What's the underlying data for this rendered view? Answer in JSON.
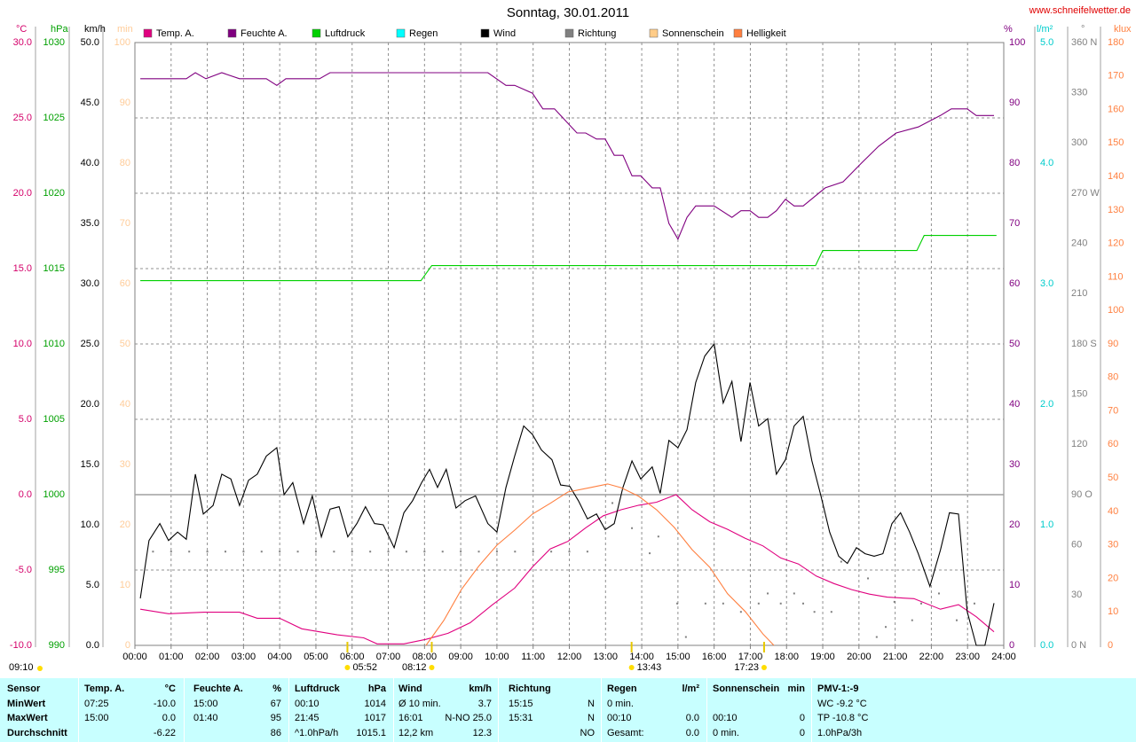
{
  "chart_data": {
    "type": "line",
    "title": "Sonntag, 30.01.2011",
    "source": "www.schneifelwetter.de",
    "corner_note": "09:10",
    "grid": true,
    "xlim": [
      0,
      24
    ],
    "xticks": [
      {
        "value": 0,
        "label": "00:00"
      },
      {
        "value": 1,
        "label": "01:00"
      },
      {
        "value": 2,
        "label": "02:00"
      },
      {
        "value": 3,
        "label": "03:00"
      },
      {
        "value": 4,
        "label": "04:00"
      },
      {
        "value": 5,
        "label": "05:00"
      },
      {
        "value": 6,
        "label": "06:00"
      },
      {
        "value": 7,
        "label": "07:00"
      },
      {
        "value": 8,
        "label": "08:00"
      },
      {
        "value": 9,
        "label": "09:00"
      },
      {
        "value": 10,
        "label": "10:00"
      },
      {
        "value": 11,
        "label": "11:00"
      },
      {
        "value": 12,
        "label": "12:00"
      },
      {
        "value": 13,
        "label": "13:00"
      },
      {
        "value": 14,
        "label": "14:00"
      },
      {
        "value": 15,
        "label": "15:00"
      },
      {
        "value": 16,
        "label": "16:00"
      },
      {
        "value": 17,
        "label": "17:00"
      },
      {
        "value": 18,
        "label": "18:00"
      },
      {
        "value": 19,
        "label": "19:00"
      },
      {
        "value": 20,
        "label": "20:00"
      },
      {
        "value": 21,
        "label": "21:00"
      },
      {
        "value": 22,
        "label": "22:00"
      },
      {
        "value": 23,
        "label": "23:00"
      },
      {
        "value": 24,
        "label": "24:00"
      }
    ],
    "axes": [
      {
        "label": "°C",
        "side": "left",
        "color": "#d4006a",
        "ylim": [
          -10,
          30
        ],
        "yticks": [
          {
            "value": -10,
            "label": "-10.0"
          },
          {
            "value": -5,
            "label": "-5.0"
          },
          {
            "value": 0,
            "label": "0.0"
          },
          {
            "value": 5,
            "label": "5.0"
          },
          {
            "value": 10,
            "label": "10.0"
          },
          {
            "value": 15,
            "label": "15.0"
          },
          {
            "value": 20,
            "label": "20.0"
          },
          {
            "value": 25,
            "label": "25.0"
          },
          {
            "value": 30,
            "label": "30.0"
          }
        ]
      },
      {
        "label": "hPa",
        "side": "left",
        "color": "#00a000",
        "ylim": [
          990,
          1030
        ],
        "yticks": [
          990,
          995,
          1000,
          1005,
          1010,
          1015,
          1020,
          1025,
          1030
        ]
      },
      {
        "label": "km/h",
        "side": "left",
        "color": "#000000",
        "ylim": [
          0,
          50
        ],
        "yticks": [
          {
            "value": 0,
            "label": "0.0"
          },
          {
            "value": 5,
            "label": "5.0"
          },
          {
            "value": 10,
            "label": "10.0"
          },
          {
            "value": 15,
            "label": "15.0"
          },
          {
            "value": 20,
            "label": "20.0"
          },
          {
            "value": 25,
            "label": "25.0"
          },
          {
            "value": 30,
            "label": "30.0"
          },
          {
            "value": 35,
            "label": "35.0"
          },
          {
            "value": 40,
            "label": "40.0"
          },
          {
            "value": 45,
            "label": "45.0"
          },
          {
            "value": 50,
            "label": "50.0"
          }
        ]
      },
      {
        "label": "min",
        "side": "left",
        "color": "#ffcc99",
        "ylim": [
          0,
          100
        ],
        "yticks": [
          0,
          10,
          20,
          30,
          40,
          50,
          60,
          70,
          80,
          90,
          100
        ]
      },
      {
        "label": "%",
        "side": "right",
        "color": "#800080",
        "ylim": [
          0,
          100
        ],
        "yticks": [
          0,
          10,
          20,
          30,
          40,
          50,
          60,
          70,
          80,
          90,
          100
        ]
      },
      {
        "label": "l/m²",
        "side": "right",
        "color": "#00cccc",
        "ylim": [
          0,
          5
        ],
        "yticks": [
          {
            "value": 0,
            "label": "0.0"
          },
          {
            "value": 1,
            "label": "1.0"
          },
          {
            "value": 2,
            "label": "2.0"
          },
          {
            "value": 3,
            "label": "3.0"
          },
          {
            "value": 4,
            "label": "4.0"
          },
          {
            "value": 5,
            "label": "5.0"
          }
        ]
      },
      {
        "label": "°",
        "side": "right",
        "color": "#808080",
        "ylim": [
          0,
          360
        ],
        "yticks": [
          {
            "value": 0,
            "label": "0 N"
          },
          30,
          60,
          {
            "value": 90,
            "label": "90 O"
          },
          120,
          150,
          {
            "value": 180,
            "label": "180 S"
          },
          210,
          240,
          {
            "value": 270,
            "label": "270 W"
          },
          300,
          330,
          {
            "value": 360,
            "label": "360 N"
          }
        ]
      },
      {
        "label": "klux",
        "side": "right",
        "color": "#ff8040",
        "ylim": [
          0,
          180
        ],
        "yticks": [
          0,
          10,
          20,
          30,
          40,
          50,
          60,
          70,
          80,
          90,
          100,
          110,
          120,
          130,
          140,
          150,
          160,
          170,
          180
        ]
      }
    ],
    "series": [
      {
        "name": "Temp. A.",
        "color": "#e0007f",
        "axis": 0,
        "style": "line",
        "x": [
          0.15,
          0.93,
          1.91,
          2.89,
          3.38,
          4.0,
          4.61,
          5.59,
          6.32,
          6.69,
          7.43,
          8.04,
          8.65,
          9.26,
          9.88,
          10.49,
          10.98,
          11.47,
          11.96,
          12.45,
          12.94,
          13.43,
          13.92,
          14.41,
          14.95,
          15.39,
          15.88,
          16.37,
          16.86,
          17.35,
          17.84,
          18.33,
          18.82,
          19.31,
          19.8,
          20.29,
          20.78,
          21.52,
          22.25,
          22.75,
          23.24,
          23.73
        ],
        "values": [
          -7.6,
          -7.9,
          -7.8,
          -7.8,
          -8.2,
          -8.2,
          -8.9,
          -9.3,
          -9.5,
          -9.9,
          -9.9,
          -9.6,
          -9.2,
          -8.5,
          -7.3,
          -6.2,
          -4.8,
          -3.6,
          -3.1,
          -2.2,
          -1.4,
          -1.0,
          -0.7,
          -0.5,
          0.0,
          -1.0,
          -1.8,
          -2.3,
          -2.9,
          -3.4,
          -4.2,
          -4.6,
          -5.4,
          -5.9,
          -6.3,
          -6.6,
          -6.8,
          -6.9,
          -7.6,
          -7.3,
          -8.1,
          -9.1
        ]
      },
      {
        "name": "Feuchte A.",
        "color": "#800080",
        "axis": 4,
        "style": "line",
        "x": [
          0.15,
          1.42,
          1.67,
          1.96,
          2.4,
          2.89,
          3.63,
          3.92,
          4.17,
          5.1,
          5.39,
          9.75,
          10.25,
          10.49,
          10.98,
          11.27,
          11.59,
          12.21,
          12.45,
          12.75,
          12.99,
          13.24,
          13.48,
          13.73,
          13.97,
          14.29,
          14.51,
          14.75,
          15.0,
          15.25,
          15.49,
          16.0,
          16.49,
          16.74,
          16.99,
          17.23,
          17.48,
          17.72,
          17.97,
          18.21,
          18.46,
          19.07,
          19.56,
          20.05,
          20.54,
          21.03,
          21.64,
          22.25,
          22.55,
          22.99,
          23.24,
          23.73
        ],
        "values": [
          94,
          94,
          95,
          94,
          95,
          94,
          94,
          92.9,
          94,
          94,
          95,
          95,
          92.9,
          92.9,
          91.6,
          89,
          89,
          85,
          85,
          84,
          84,
          81.3,
          81.3,
          77.9,
          77.9,
          75.9,
          75.9,
          70,
          67.4,
          71,
          72.9,
          72.9,
          71,
          72.1,
          72.1,
          71,
          71,
          72.1,
          74,
          72.9,
          72.9,
          75.9,
          76.9,
          79.9,
          82.8,
          85,
          86,
          87.9,
          89,
          89,
          87.9,
          87.9
        ]
      },
      {
        "name": "Luftdruck",
        "color": "#00d000",
        "axis": 1,
        "style": "line",
        "x": [
          0.15,
          7.9,
          8.2,
          18.8,
          19.0,
          21.6,
          21.8,
          23.8
        ],
        "values": [
          1014.2,
          1014.2,
          1015.2,
          1015.2,
          1016.2,
          1016.2,
          1017.2,
          1017.2
        ]
      },
      {
        "name": "Regen",
        "color": "#00ffff",
        "axis": 5,
        "style": "line",
        "x": [],
        "values": []
      },
      {
        "name": "Wind",
        "color": "#000000",
        "axis": 2,
        "style": "line",
        "x": [
          0.15,
          0.39,
          0.69,
          0.93,
          1.18,
          1.42,
          1.67,
          1.89,
          2.16,
          2.4,
          2.65,
          2.89,
          3.14,
          3.38,
          3.63,
          3.92,
          4.12,
          4.36,
          4.66,
          4.9,
          5.15,
          5.39,
          5.64,
          5.88,
          6.13,
          6.37,
          6.62,
          6.86,
          7.16,
          7.43,
          7.67,
          7.92,
          8.14,
          8.36,
          8.6,
          8.87,
          9.12,
          9.41,
          9.75,
          10.0,
          10.25,
          10.49,
          10.74,
          10.98,
          11.23,
          11.52,
          11.76,
          12.01,
          12.25,
          12.5,
          12.75,
          12.99,
          13.24,
          13.48,
          13.73,
          13.97,
          14.29,
          14.51,
          14.75,
          15.0,
          15.25,
          15.49,
          15.74,
          16.0,
          16.25,
          16.49,
          16.74,
          16.99,
          17.23,
          17.48,
          17.72,
          17.97,
          18.21,
          18.46,
          18.7,
          18.95,
          19.19,
          19.44,
          19.68,
          19.93,
          20.17,
          20.42,
          20.66,
          20.91,
          21.15,
          21.4,
          21.64,
          21.96,
          22.25,
          22.5,
          22.75,
          22.99,
          23.24,
          23.48,
          23.73
        ],
        "values": [
          3.9,
          8.7,
          10.1,
          8.7,
          9.4,
          8.8,
          14.2,
          10.9,
          11.6,
          14.2,
          13.8,
          11.6,
          13.7,
          14.2,
          15.7,
          16.4,
          12.5,
          13.5,
          10.1,
          12.4,
          9.0,
          11.3,
          11.5,
          9.0,
          10.1,
          11.5,
          10.1,
          10.0,
          8.1,
          11.0,
          12.0,
          13.5,
          14.6,
          13.1,
          14.6,
          11.4,
          12.0,
          12.4,
          10.1,
          9.4,
          13.1,
          15.7,
          18.2,
          17.5,
          16.2,
          15.4,
          13.3,
          13.2,
          12.0,
          10.5,
          10.9,
          9.6,
          10.1,
          13.1,
          15.3,
          13.8,
          14.8,
          12.6,
          17.0,
          16.4,
          17.9,
          21.8,
          24.0,
          25.0,
          20.1,
          21.9,
          16.9,
          21.8,
          18.2,
          18.8,
          14.2,
          15.4,
          18.2,
          19.0,
          15.3,
          12.4,
          9.4,
          7.4,
          6.8,
          8.1,
          7.6,
          7.4,
          7.6,
          10.1,
          11.0,
          9.4,
          7.6,
          4.9,
          7.9,
          11.0,
          10.9,
          2.8,
          0,
          0,
          3.5
        ]
      },
      {
        "name": "Richtung",
        "color": "#808080",
        "axis": 6,
        "style": "dots",
        "x": [
          0.5,
          1,
          1.5,
          2,
          2.5,
          3,
          3.5,
          4,
          4.5,
          5,
          5.5,
          6,
          6.5,
          7,
          7.5,
          8,
          8.5,
          9,
          9.5,
          10,
          10.5,
          11,
          11.5,
          12,
          12.5,
          13.19,
          13.73,
          14.22,
          14.46,
          14.98,
          15.22,
          15.76,
          16.25,
          16.74,
          17.23,
          17.48,
          17.84,
          18.21,
          18.46,
          18.77,
          19.24,
          19.51,
          20.25,
          20.49,
          20.74,
          20.98,
          21.47,
          21.72,
          22.21,
          22.7,
          23.19
        ],
        "values": [
          56,
          56,
          56,
          56,
          56,
          56,
          56,
          56,
          56,
          56,
          56,
          56,
          56,
          56,
          56,
          56,
          56,
          56,
          56,
          56,
          56,
          56,
          56,
          56,
          56,
          85,
          70,
          55,
          65,
          25,
          5,
          25,
          25,
          20,
          25,
          31,
          25,
          31,
          25,
          20,
          20,
          50,
          40,
          5,
          11,
          26,
          15,
          25,
          31,
          15,
          25
        ]
      },
      {
        "name": "Sonnenschein",
        "color": "#ffcc88",
        "axis": 3,
        "style": "line",
        "x": [],
        "values": []
      },
      {
        "name": "Helligkeit",
        "color": "#ff7f3f",
        "axis": 7,
        "style": "line",
        "x": [
          8.04,
          8.53,
          9.02,
          9.51,
          10.0,
          10.49,
          10.98,
          11.47,
          11.96,
          12.57,
          13.06,
          13.43,
          13.92,
          14.41,
          14.9,
          15.39,
          15.88,
          16.37,
          16.86,
          17.35,
          17.65
        ],
        "values": [
          0,
          7.4,
          16.7,
          23.8,
          29.9,
          34.4,
          39.2,
          42.4,
          45.8,
          47.1,
          48.2,
          47.1,
          44.5,
          40.5,
          35.2,
          28.6,
          23.3,
          15.4,
          10.1,
          3.4,
          0
        ]
      }
    ],
    "annotations": [
      {
        "text": "05:52",
        "x": 5.87
      },
      {
        "text": "08:12",
        "x": 8.2
      },
      {
        "text": "13:43",
        "x": 13.72
      },
      {
        "text": "17:23",
        "x": 17.38
      }
    ]
  },
  "table": {
    "header": [
      {
        "left": "Sensor"
      },
      {
        "left": "Temp. A.",
        "right": "°C"
      },
      {
        "left": "Feuchte A.",
        "right": "%"
      },
      {
        "left": "Luftdruck",
        "right": "hPa"
      },
      {
        "left": "Wind",
        "right": "km/h"
      },
      {
        "left": "Richtung"
      },
      {
        "left": "Regen",
        "right": "l/m²"
      },
      {
        "left": "Sonnenschein",
        "right": "min"
      },
      {
        "left": "PMV-1:-9"
      }
    ],
    "rows": [
      [
        {
          "left": "MinWert"
        },
        {
          "left": "07:25",
          "right": "-10.0"
        },
        {
          "left": "15:00",
          "right": "67"
        },
        {
          "left": "00:10",
          "right": "1014"
        },
        {
          "left": "Ø 10 min.",
          "right": "3.7"
        },
        {
          "left": "15:15",
          "right": "N"
        },
        {
          "left": "0 min."
        },
        {},
        {
          "left": "WC -9.2 °C"
        }
      ],
      [
        {
          "left": "MaxWert"
        },
        {
          "left": "15:00",
          "right": "0.0"
        },
        {
          "left": "01:40",
          "right": "95"
        },
        {
          "left": "21:45",
          "right": "1017"
        },
        {
          "left": "16:01",
          "right": "N-NO 25.0"
        },
        {
          "left": "15:31",
          "right": "N"
        },
        {
          "left": "00:10",
          "right": "0.0"
        },
        {
          "left": "00:10",
          "right": "0"
        },
        {
          "left": "TP -10.8 °C"
        }
      ],
      [
        {
          "left": "Durchschnitt"
        },
        {
          "right": "-6.22"
        },
        {
          "right": "86"
        },
        {
          "left": "^1.0hPa/h",
          "right": "1015.1"
        },
        {
          "left": "12,2 km",
          "right": "12.3"
        },
        {
          "right": "NO"
        },
        {
          "left": "Gesamt:",
          "right": "0.0"
        },
        {
          "left": "0 min.",
          "right": "0"
        },
        {
          "left": "1.0hPa/3h"
        }
      ]
    ]
  }
}
